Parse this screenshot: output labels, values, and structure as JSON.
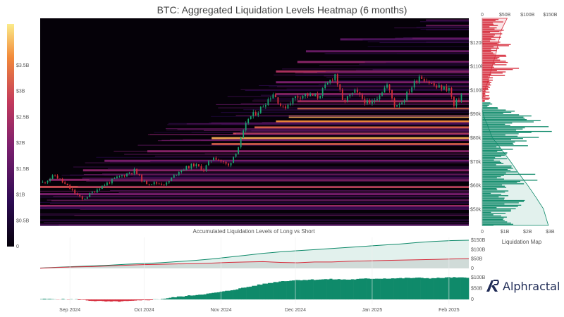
{
  "title": "BTC: Aggregated Liquidation Levels Heatmap (6 months)",
  "brand": "Alphractal",
  "colors": {
    "long": "#0f8a6a",
    "short": "#d62a3a",
    "candle_up": "#1aa36f",
    "candle_down": "#d6303a",
    "heat_bg": "#050108"
  },
  "chart_data": [
    {
      "type": "heatmap",
      "title": "BTC: Aggregated Liquidation Levels Heatmap (6 months)",
      "colorbar": {
        "ticks": [
          "0",
          "$0.5B",
          "$1B",
          "$1.5B",
          "$2B",
          "$2.5B",
          "$3B",
          "$3.5B"
        ],
        "values": [
          0,
          0.5,
          1,
          1.5,
          2,
          2.5,
          3,
          3.5
        ],
        "max": 4.3
      },
      "y_ticks": [
        "$50k",
        "$60k",
        "$70k",
        "$80k",
        "$90k",
        "$100k",
        "$110k",
        "$120k"
      ],
      "y_values": [
        50000,
        60000,
        70000,
        80000,
        90000,
        100000,
        110000,
        120000
      ],
      "ylim": [
        43000,
        130000
      ],
      "x_ticks": [
        "Sep 2024",
        "Oct 2024",
        "Nov 2024",
        "Dec 2024",
        "Jan 2025",
        "Feb 2025"
      ],
      "price_path": {
        "dates": [
          "2024-08-21",
          "2024-08-26",
          "2024-09-02",
          "2024-09-06",
          "2024-09-13",
          "2024-09-20",
          "2024-09-27",
          "2024-10-01",
          "2024-10-10",
          "2024-10-15",
          "2024-10-21",
          "2024-10-25",
          "2024-10-29",
          "2024-11-04",
          "2024-11-08",
          "2024-11-12",
          "2024-11-16",
          "2024-11-22",
          "2024-11-26",
          "2024-12-01",
          "2024-12-05",
          "2024-12-10",
          "2024-12-17",
          "2024-12-20",
          "2024-12-25",
          "2024-12-31",
          "2025-01-07",
          "2025-01-10",
          "2025-01-13",
          "2025-01-20",
          "2025-01-27",
          "2025-02-01",
          "2025-02-03",
          "2025-02-06"
        ],
        "close": [
          61000,
          64000,
          57500,
          53800,
          59000,
          63000,
          66000,
          61000,
          60500,
          66000,
          68500,
          66500,
          72000,
          68000,
          76000,
          88000,
          91000,
          98500,
          92000,
          97000,
          98000,
          97000,
          106500,
          95000,
          99000,
          93500,
          102000,
          93500,
          95000,
          106000,
          101000,
          100500,
          93000,
          98000
        ]
      },
      "liquidation_bands": [
        {
          "price": 51000,
          "intensity": 0.55,
          "start": 0.0
        },
        {
          "price": 56000,
          "intensity": 0.45,
          "start": 0.0
        },
        {
          "price": 59000,
          "intensity": 0.7,
          "start": 0.0
        },
        {
          "price": 62000,
          "intensity": 0.5,
          "start": 0.02
        },
        {
          "price": 66000,
          "intensity": 0.5,
          "start": 0.1
        },
        {
          "price": 70000,
          "intensity": 0.45,
          "start": 0.15
        },
        {
          "price": 74000,
          "intensity": 0.5,
          "start": 0.25
        },
        {
          "price": 77000,
          "intensity": 0.75,
          "start": 0.4
        },
        {
          "price": 79500,
          "intensity": 0.9,
          "start": 0.4
        },
        {
          "price": 81500,
          "intensity": 0.7,
          "start": 0.45
        },
        {
          "price": 84000,
          "intensity": 0.75,
          "start": 0.5
        },
        {
          "price": 86500,
          "intensity": 0.85,
          "start": 0.55
        },
        {
          "price": 88500,
          "intensity": 0.9,
          "start": 0.58
        },
        {
          "price": 92000,
          "intensity": 0.8,
          "start": 0.6
        },
        {
          "price": 95000,
          "intensity": 0.6,
          "start": 0.6
        },
        {
          "price": 98000,
          "intensity": 0.5,
          "start": 0.55
        },
        {
          "price": 103000,
          "intensity": 0.45,
          "start": 0.55
        },
        {
          "price": 107500,
          "intensity": 0.6,
          "start": 0.55
        },
        {
          "price": 111500,
          "intensity": 0.5,
          "start": 0.6
        },
        {
          "price": 116000,
          "intensity": 0.4,
          "start": 0.62
        },
        {
          "price": 121000,
          "intensity": 0.35,
          "start": 0.7
        }
      ]
    },
    {
      "type": "bar",
      "title": "Liquidation Map",
      "orientation": "horizontal",
      "x_ticks_top": [
        "0",
        "$50B",
        "$100B",
        "$150B"
      ],
      "x_ticks_bottom": [
        "0",
        "$1B",
        "$2B",
        "$3B"
      ],
      "price_levels": [
        45000,
        50000,
        55000,
        60000,
        65000,
        70000,
        75000,
        80000,
        82000,
        85000,
        87000,
        88000,
        90000,
        92000,
        95000,
        100000,
        103000,
        106000,
        108000,
        110000,
        112000,
        115000,
        118000,
        120000,
        122000,
        125000,
        127000
      ],
      "values_B": [
        1.2,
        1.6,
        1.1,
        2.1,
        1.4,
        1.0,
        1.7,
        2.6,
        3.0,
        2.1,
        2.7,
        2.9,
        1.2,
        0.6,
        0.3,
        0.4,
        0.5,
        0.9,
        1.6,
        1.0,
        1.3,
        0.7,
        1.4,
        0.8,
        0.9,
        1.0,
        1.3
      ],
      "side": [
        "long",
        "long",
        "long",
        "long",
        "long",
        "long",
        "long",
        "long",
        "long",
        "long",
        "long",
        "long",
        "long",
        "long",
        "short",
        "short",
        "short",
        "short",
        "short",
        "short",
        "short",
        "short",
        "short",
        "short",
        "short",
        "short",
        "short"
      ],
      "cumulative_long_B": [
        146,
        135,
        118,
        100,
        80,
        62,
        42,
        22,
        16,
        10,
        5,
        2,
        0
      ],
      "cumulative_long_prices": [
        43000,
        50000,
        55000,
        60000,
        65000,
        70000,
        75000,
        80000,
        83000,
        86000,
        88000,
        90000,
        92000
      ],
      "cumulative_short_B": [
        0,
        6,
        15,
        22,
        30,
        36,
        42,
        55
      ],
      "cumulative_short_prices": [
        96000,
        100000,
        105000,
        110000,
        115000,
        120000,
        125000,
        130000
      ],
      "xlabel": "Liquidation Map"
    },
    {
      "type": "area",
      "title": "Accumulated Liquidation Levels of Long vs Short",
      "y_ticks": [
        "0",
        "$50B",
        "$100B",
        "$150B"
      ],
      "ylim": [
        0,
        165
      ],
      "series": [
        {
          "values": [
            2,
            6,
            10,
            13,
            17,
            22,
            26,
            30,
            36,
            42,
            50,
            60,
            70,
            80,
            88,
            94,
            100,
            106,
            112,
            118,
            124,
            130,
            138,
            144,
            148,
            150
          ]
        },
        {
          "values": [
            1,
            5,
            8,
            10,
            13,
            17,
            20,
            22,
            24,
            25,
            28,
            32,
            34,
            36,
            32,
            30,
            34,
            34,
            38,
            40,
            42,
            44,
            46,
            48,
            50,
            52
          ]
        }
      ]
    },
    {
      "type": "area",
      "y_ticks": [
        "0",
        "$50B",
        "$100B"
      ],
      "ylim": [
        -22,
        112
      ],
      "values": [
        2,
        1,
        0,
        -6,
        -10,
        -8,
        -4,
        2,
        12,
        20,
        28,
        40,
        55,
        70,
        82,
        88,
        90,
        92,
        90,
        94,
        95,
        96,
        98,
        96,
        100,
        98
      ]
    }
  ]
}
